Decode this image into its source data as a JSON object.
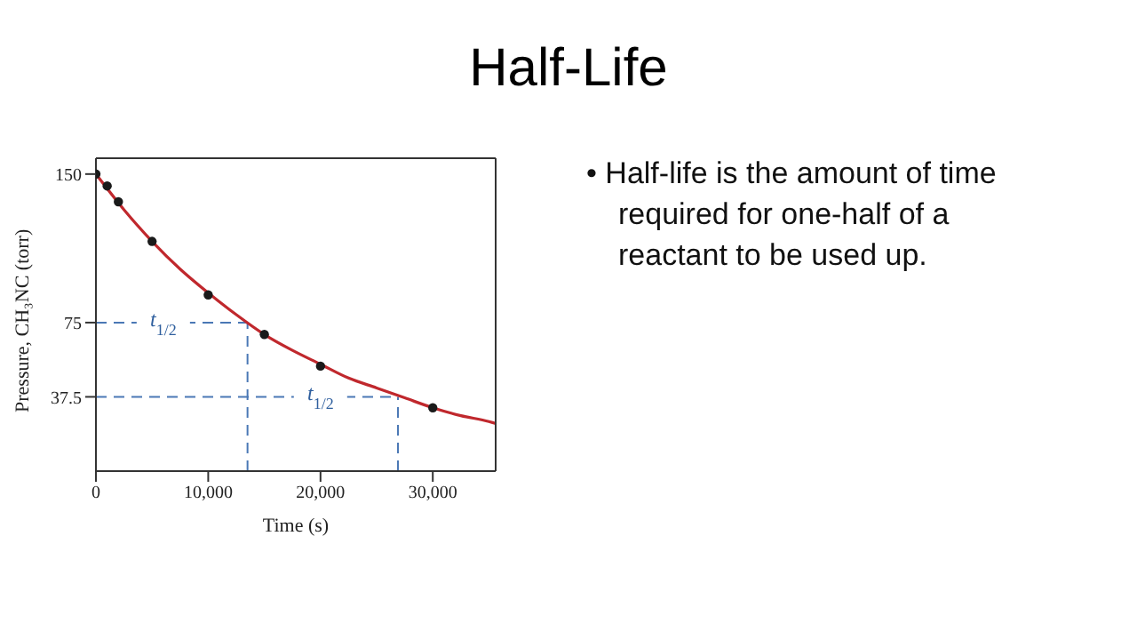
{
  "chart_data": {
    "type": "scatter",
    "title": "Half-Life",
    "xlabel": "Time (s)",
    "ylabel": "Pressure, CH₃NC (torr)",
    "x": [
      0,
      1000,
      2000,
      5000,
      10000,
      15000,
      20000,
      30000
    ],
    "series": [
      {
        "color": "#1a1a1a",
        "marker": "circle",
        "values": [
          150,
          144,
          136,
          116,
          89,
          69,
          53,
          32
        ]
      },
      {
        "type": "line",
        "color": "#c0282d",
        "marker": "none",
        "x": [
          0,
          2500,
          5000,
          7500,
          10000,
          12500,
          15000,
          17500,
          20000,
          22500,
          25000,
          27500,
          30000,
          32500,
          35000,
          35600
        ],
        "values": [
          150,
          132,
          116,
          102,
          90,
          79,
          69,
          61,
          54,
          47,
          42,
          37,
          32,
          28,
          25,
          24
        ]
      }
    ],
    "xlim": [
      0,
      35600
    ],
    "ylim": [
      0,
      158
    ],
    "xticks": [
      0,
      {
        "value": 10000,
        "label": "10,000"
      },
      {
        "value": 20000,
        "label": "20,000"
      },
      {
        "value": 30000,
        "label": "30,000"
      }
    ],
    "yticks": [
      37.5,
      75,
      150
    ],
    "ref_lines": [
      {
        "axis": "y",
        "value": 75,
        "color": "#4a78b5",
        "line_style": "dashed"
      },
      {
        "axis": "y",
        "value": 37.5,
        "color": "#4a78b5",
        "line_style": "dashed"
      },
      {
        "axis": "x",
        "value": 13500,
        "color": "#4a78b5",
        "line_style": "dashed"
      },
      {
        "axis": "x",
        "value": 26900,
        "color": "#4a78b5",
        "line_style": "dashed"
      }
    ],
    "annotations": [
      {
        "text": "t$_{1/2}$",
        "x": 6000,
        "y": 75
      },
      {
        "text": "t$_{1/2}$",
        "x": 20000,
        "y": 37.5
      },
      "• Half-life is the amount of time required for one-half of a reactant to be used up."
    ]
  }
}
